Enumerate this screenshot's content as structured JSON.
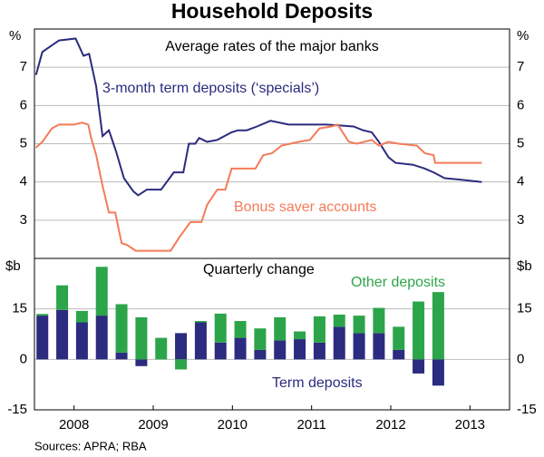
{
  "title": "Household Deposits",
  "source": "Sources: APRA; RBA",
  "chart_data": [
    {
      "type": "line",
      "subtitle": "Average rates of the major banks",
      "unit": "%",
      "xlim": [
        2008,
        2014
      ],
      "ylim": [
        2,
        8
      ],
      "yticks": [
        3,
        4,
        5,
        6,
        7
      ],
      "grid": true,
      "series": [
        {
          "name": "3-month term deposits (‘specials’)",
          "color": "#2b2b7f",
          "x": [
            2008.02,
            2008.1,
            2008.31,
            2008.52,
            2008.62,
            2008.69,
            2008.78,
            2008.86,
            2008.94,
            2009.03,
            2009.13,
            2009.25,
            2009.31,
            2009.42,
            2009.6,
            2009.76,
            2009.88,
            2009.95,
            2010.03,
            2010.08,
            2010.18,
            2010.31,
            2010.49,
            2010.57,
            2010.68,
            2010.81,
            2010.98,
            2011.21,
            2011.69,
            2012.03,
            2012.15,
            2012.26,
            2012.35,
            2012.47,
            2012.56,
            2012.78,
            2012.93,
            2013.04,
            2013.18,
            2013.43,
            2013.65
          ],
          "values": [
            6.8,
            7.4,
            7.7,
            7.75,
            7.3,
            7.35,
            6.5,
            5.2,
            5.35,
            4.8,
            4.1,
            3.75,
            3.65,
            3.8,
            3.8,
            4.25,
            4.25,
            5.0,
            5.0,
            5.15,
            5.05,
            5.1,
            5.3,
            5.35,
            5.35,
            5.45,
            5.6,
            5.5,
            5.5,
            5.45,
            5.35,
            5.3,
            5.05,
            4.65,
            4.5,
            4.45,
            4.35,
            4.25,
            4.1,
            4.05,
            4.0
          ]
        },
        {
          "name": "Bonus saver accounts",
          "color": "#f47b59",
          "x": [
            2008.02,
            2008.1,
            2008.22,
            2008.31,
            2008.5,
            2008.6,
            2008.68,
            2008.71,
            2008.78,
            2008.86,
            2008.94,
            2009.02,
            2009.1,
            2009.17,
            2009.28,
            2009.45,
            2009.72,
            2009.83,
            2009.97,
            2010.11,
            2010.18,
            2010.31,
            2010.41,
            2010.49,
            2010.79,
            2010.89,
            2011.0,
            2011.12,
            2011.34,
            2011.48,
            2011.6,
            2011.75,
            2011.83,
            2011.97,
            2012.07,
            2012.26,
            2012.35,
            2012.47,
            2012.6,
            2012.83,
            2012.93,
            2013.04,
            2013.06,
            2013.65
          ],
          "values": [
            4.9,
            5.05,
            5.4,
            5.5,
            5.5,
            5.55,
            5.5,
            5.2,
            4.7,
            3.9,
            3.2,
            3.2,
            2.4,
            2.35,
            2.2,
            2.2,
            2.2,
            2.55,
            2.95,
            2.95,
            3.4,
            3.8,
            3.8,
            4.35,
            4.35,
            4.7,
            4.75,
            4.95,
            5.05,
            5.1,
            5.4,
            5.45,
            5.5,
            5.05,
            5.0,
            5.1,
            4.95,
            5.05,
            5.0,
            4.95,
            4.75,
            4.7,
            4.5,
            4.5
          ]
        }
      ]
    },
    {
      "type": "bar",
      "subtitle": "Quarterly change",
      "unit": "$b",
      "stacked": true,
      "xlim": [
        2008,
        2014
      ],
      "ylim": [
        -15,
        30
      ],
      "yticks": [
        -15,
        0,
        15
      ],
      "grid": true,
      "xticks": [
        {
          "value": 2008.5,
          "label": "2008"
        },
        {
          "value": 2009.5,
          "label": "2009"
        },
        {
          "value": 2010.5,
          "label": "2010"
        },
        {
          "value": 2011.5,
          "label": "2011"
        },
        {
          "value": 2012.5,
          "label": "2012"
        },
        {
          "value": 2013.5,
          "label": "2013"
        }
      ],
      "x": [
        2008.1,
        2008.35,
        2008.6,
        2008.85,
        2009.1,
        2009.35,
        2009.6,
        2009.85,
        2010.1,
        2010.35,
        2010.6,
        2010.85,
        2011.1,
        2011.35,
        2011.6,
        2011.85,
        2012.1,
        2012.35,
        2012.6,
        2012.85,
        2013.1
      ],
      "series": [
        {
          "name": "Term deposits",
          "color": "#2b2b7f",
          "values": [
            13,
            14.7,
            11,
            13,
            2,
            -2,
            0,
            7.8,
            11,
            5,
            6.4,
            2.8,
            5.6,
            6,
            5,
            9.7,
            7.8,
            7.8,
            2.8,
            -4.2,
            -7.8
          ]
        },
        {
          "name": "Other deposits",
          "color": "#2ca54a",
          "values": [
            0.5,
            7.3,
            3.4,
            14.5,
            14.4,
            12.5,
            6.4,
            -3,
            0.4,
            8.6,
            5,
            6.4,
            6.9,
            2.3,
            7.8,
            3.6,
            5.2,
            7.5,
            6.9,
            17.2,
            20
          ]
        }
      ]
    }
  ]
}
